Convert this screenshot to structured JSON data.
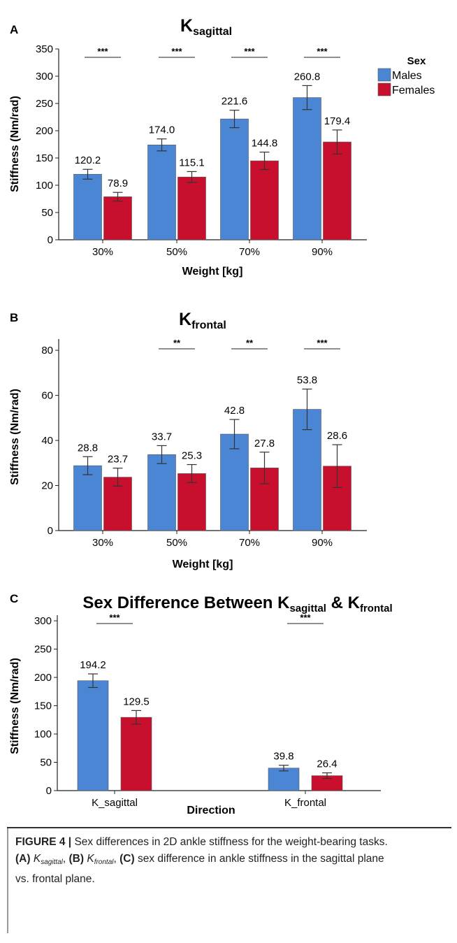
{
  "colors": {
    "male": "#4a86d4",
    "female": "#c8102e",
    "error": "#333333"
  },
  "chart_data": [
    {
      "type": "bar",
      "panel": "A",
      "title_main": "K",
      "title_sub": "sagittal",
      "xlabel": "Weight [kg]",
      "ylabel": "Stiffness (Nm/rad)",
      "ylim": [
        0,
        350
      ],
      "yticks": [
        0,
        50,
        100,
        150,
        200,
        250,
        300,
        350
      ],
      "categories": [
        "30%",
        "50%",
        "70%",
        "90%"
      ],
      "series": [
        {
          "name": "Males",
          "values": [
            120.2,
            174.0,
            221.6,
            260.8
          ],
          "errors": [
            9,
            11,
            16,
            22
          ],
          "labels": [
            "120.2",
            "174.0",
            "221.6",
            "260.8"
          ]
        },
        {
          "name": "Females",
          "values": [
            78.9,
            115.1,
            144.8,
            179.4
          ],
          "errors": [
            8,
            10,
            16,
            22
          ],
          "labels": [
            "78.9",
            "115.1",
            "144.8",
            "179.4"
          ]
        }
      ],
      "significance": [
        "***",
        "***",
        "***",
        "***"
      ],
      "legend": {
        "title": "Sex",
        "position": "top-right"
      }
    },
    {
      "type": "bar",
      "panel": "B",
      "title_main": "K",
      "title_sub": "frontal",
      "xlabel": "Weight [kg]",
      "ylabel": "Stiffness (Nm/rad)",
      "ylim": [
        0,
        85
      ],
      "yticks": [
        0,
        20,
        40,
        60,
        80
      ],
      "categories": [
        "30%",
        "50%",
        "70%",
        "90%"
      ],
      "series": [
        {
          "name": "Males",
          "values": [
            28.8,
            33.7,
            42.8,
            53.8
          ],
          "errors": [
            4,
            4,
            6.5,
            9
          ],
          "labels": [
            "28.8",
            "33.7",
            "42.8",
            "53.8"
          ]
        },
        {
          "name": "Females",
          "values": [
            23.7,
            25.3,
            27.8,
            28.6
          ],
          "errors": [
            4,
            4,
            7,
            9.5
          ],
          "labels": [
            "23.7",
            "25.3",
            "27.8",
            "28.6"
          ]
        }
      ],
      "significance": [
        "",
        "**",
        "**",
        "***"
      ]
    },
    {
      "type": "bar",
      "panel": "C",
      "title_parts": [
        "Sex Difference Between K",
        "sagittal",
        " & K",
        "frontal"
      ],
      "xlabel": "Direction",
      "ylabel": "Stiffness (Nm/rad)",
      "ylim": [
        0,
        310
      ],
      "yticks": [
        0,
        50,
        100,
        150,
        200,
        250,
        300
      ],
      "categories": [
        "K_sagittal",
        "K_frontal"
      ],
      "series": [
        {
          "name": "Males",
          "values": [
            194.2,
            39.8
          ],
          "errors": [
            12,
            5
          ],
          "labels": [
            "194.2",
            "39.8"
          ]
        },
        {
          "name": "Females",
          "values": [
            129.5,
            26.4
          ],
          "errors": [
            12,
            5
          ],
          "labels": [
            "129.5",
            "26.4"
          ]
        }
      ],
      "significance": [
        "***",
        "***"
      ]
    }
  ],
  "caption": {
    "label": "FIGURE 4 |",
    "text": " Sex differences in 2D ankle stiffness for the weight-bearing tasks.",
    "a_label": "(A)",
    "a_main": "K",
    "a_sub": "sagittal",
    "b_label": "(B)",
    "b_main": "K",
    "b_sub": "frontal",
    "c_label": "(C)",
    "c_text": " sex difference in ankle stiffness in the sagittal plane",
    "tail": "vs. frontal plane."
  }
}
